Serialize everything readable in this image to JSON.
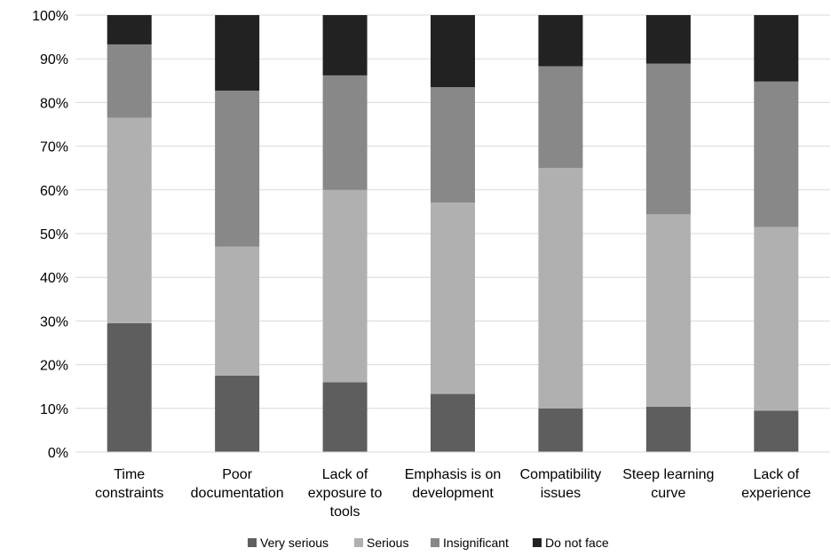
{
  "chart_data": {
    "type": "bar",
    "stacked": true,
    "percent_stacked": true,
    "categories": [
      "Time constraints",
      "Poor documentation",
      "Lack of exposure to tools",
      "Emphasis is on development",
      "Compatibility issues",
      "Steep learning curve",
      "Lack of experience"
    ],
    "category_lines": [
      [
        "Time",
        "constraints"
      ],
      [
        "Poor",
        "documentation"
      ],
      [
        "Lack of",
        "exposure to",
        "tools"
      ],
      [
        "Emphasis is on",
        "development"
      ],
      [
        "Compatibility",
        "issues"
      ],
      [
        "Steep learning",
        "curve"
      ],
      [
        "Lack of",
        "experience"
      ]
    ],
    "series": [
      {
        "name": "Very serious",
        "color": "#5e5e5e",
        "values": [
          29.5,
          17.5,
          16.0,
          13.3,
          10.0,
          10.4,
          9.5
        ]
      },
      {
        "name": "Serious",
        "color": "#b0b0b0",
        "values": [
          47.0,
          29.5,
          44.0,
          43.8,
          55.0,
          44.0,
          42.0
        ]
      },
      {
        "name": "Insignificant",
        "color": "#888888",
        "values": [
          16.8,
          35.7,
          26.2,
          26.4,
          23.3,
          34.5,
          33.3
        ]
      },
      {
        "name": "Do not face",
        "color": "#222222",
        "values": [
          6.7,
          17.3,
          13.8,
          16.5,
          11.7,
          11.1,
          15.2
        ]
      }
    ],
    "y_ticks": [
      "0%",
      "10%",
      "20%",
      "30%",
      "40%",
      "50%",
      "60%",
      "70%",
      "80%",
      "90%",
      "100%"
    ],
    "ylim": [
      0,
      100
    ],
    "grid": true,
    "legend_position": "bottom",
    "title": "",
    "xlabel": "",
    "ylabel": ""
  }
}
